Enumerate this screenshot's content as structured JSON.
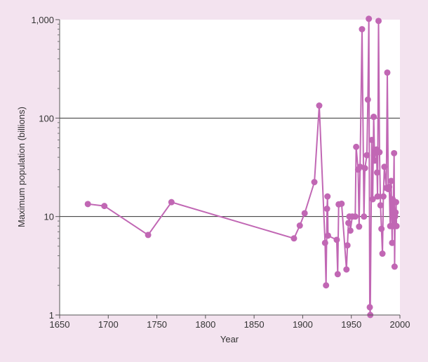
{
  "chart_data": {
    "type": "line",
    "title": "",
    "xlabel": "Year",
    "ylabel": "Maximum population (billions)",
    "xlim": [
      1650,
      2000
    ],
    "ylim": [
      1,
      1000
    ],
    "yscale": "log",
    "x_ticks": [
      1650,
      1700,
      1750,
      1800,
      1850,
      1900,
      1950,
      2000
    ],
    "x_tick_labels": [
      "1650",
      "1700",
      "1750",
      "1800",
      "1850",
      "1900",
      "1950",
      "2000"
    ],
    "y_ticks": [
      1,
      10,
      100,
      1000
    ],
    "y_tick_labels": [
      "1",
      "10",
      "100",
      "1,000"
    ],
    "gridlines_y": [
      10,
      100
    ],
    "legend": "none",
    "series": [
      {
        "color": "#c167b4",
        "points": [
          [
            1679,
            13.4
          ],
          [
            1696,
            12.8
          ],
          [
            1741,
            6.5
          ],
          [
            1765,
            14
          ],
          [
            1891,
            6
          ],
          [
            1897,
            8.1
          ],
          [
            1902,
            10.8
          ],
          [
            1912,
            22.4
          ],
          [
            1917,
            134
          ],
          [
            1923,
            5.4
          ],
          [
            1924,
            2
          ],
          [
            1925,
            12
          ],
          [
            1925.5,
            16
          ],
          [
            1926,
            6.4
          ],
          [
            1935,
            5.8
          ],
          [
            1936,
            2.6
          ],
          [
            1937,
            13.3
          ],
          [
            1940,
            13.5
          ],
          [
            1945,
            2.9
          ],
          [
            1946,
            5.1
          ],
          [
            1947,
            8.6
          ],
          [
            1948,
            10
          ],
          [
            1949,
            7.2
          ],
          [
            1951,
            10
          ],
          [
            1954,
            10
          ],
          [
            1955,
            51
          ],
          [
            1957,
            30
          ],
          [
            1958,
            7.9
          ],
          [
            1959,
            32
          ],
          [
            1961,
            800
          ],
          [
            1963,
            10
          ],
          [
            1964,
            31
          ],
          [
            1966,
            42
          ],
          [
            1967,
            154
          ],
          [
            1968,
            1020
          ],
          [
            1969,
            1.2
          ],
          [
            1969.5,
            1.0
          ],
          [
            1971,
            60
          ],
          [
            1972,
            15
          ],
          [
            1973,
            103
          ],
          [
            1974,
            37
          ],
          [
            1975,
            45
          ],
          [
            1976,
            48
          ],
          [
            1976.5,
            28
          ],
          [
            1977,
            16
          ],
          [
            1978,
            970
          ],
          [
            1979,
            45
          ],
          [
            1980,
            13
          ],
          [
            1981,
            7.5
          ],
          [
            1982,
            4.2
          ],
          [
            1983,
            16
          ],
          [
            1984,
            32
          ],
          [
            1986,
            19.5
          ],
          [
            1987,
            290
          ],
          [
            1988,
            19
          ],
          [
            1989,
            20
          ],
          [
            1990,
            8
          ],
          [
            1991,
            23
          ],
          [
            1992,
            5.4
          ],
          [
            1992.5,
            15
          ],
          [
            1993,
            8
          ],
          [
            1994,
            44
          ],
          [
            1994.5,
            3.1
          ],
          [
            1995,
            10
          ],
          [
            1995.5,
            11
          ],
          [
            1996,
            14
          ],
          [
            1996.5,
            8
          ]
        ]
      }
    ]
  }
}
